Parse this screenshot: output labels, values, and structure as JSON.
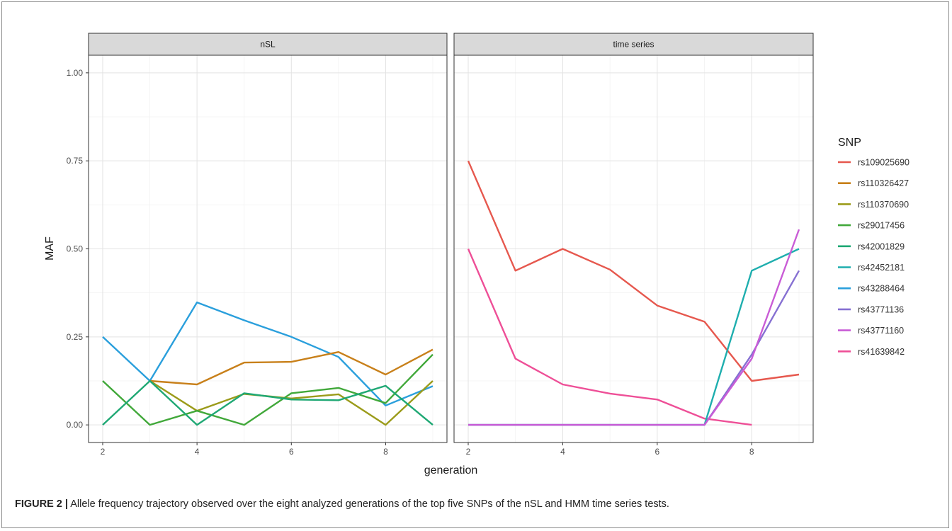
{
  "figure": {
    "label": "FIGURE 2 |",
    "caption": "Allele frequency trajectory observed over the eight analyzed generations of the top five SNPs of the nSL and HMM time series tests."
  },
  "chart_data": {
    "type": "line",
    "xlabel": "generation",
    "ylabel": "MAF",
    "xlim": [
      1.7,
      9.3
    ],
    "ylim": [
      -0.05,
      1.05
    ],
    "xticks": [
      2,
      4,
      6,
      8
    ],
    "yticks": [
      0.0,
      0.25,
      0.5,
      0.75,
      1.0
    ],
    "ytick_labels": [
      "0.00",
      "0.25",
      "0.50",
      "0.75",
      "1.00"
    ],
    "grid": true,
    "legend": {
      "title": "SNP",
      "position": "right",
      "entries": [
        {
          "name": "rs109025690",
          "color": "#E6584E"
        },
        {
          "name": "rs110326427",
          "color": "#C8801A"
        },
        {
          "name": "rs110370690",
          "color": "#9B9B1A"
        },
        {
          "name": "rs29017456",
          "color": "#41A83A"
        },
        {
          "name": "rs42001829",
          "color": "#1FA874"
        },
        {
          "name": "rs42452181",
          "color": "#1EAEAE"
        },
        {
          "name": "rs43288464",
          "color": "#2A9FDC"
        },
        {
          "name": "rs43771136",
          "color": "#8670D2"
        },
        {
          "name": "rs43771160",
          "color": "#C95CD6"
        },
        {
          "name": "rs41639842",
          "color": "#EE4F97"
        }
      ]
    },
    "panels": [
      {
        "title": "nSL",
        "series": [
          {
            "name": "rs43288464",
            "x": [
              2,
              3,
              4,
              5,
              6,
              7,
              8,
              9
            ],
            "y": [
              0.25,
              0.125,
              0.348,
              0.297,
              0.25,
              0.193,
              0.055,
              0.11
            ]
          },
          {
            "name": "rs110326427",
            "x": [
              3,
              4,
              5,
              6,
              7,
              8,
              9
            ],
            "y": [
              0.125,
              0.115,
              0.177,
              0.179,
              0.207,
              0.143,
              0.214
            ]
          },
          {
            "name": "rs110370690",
            "x": [
              3,
              4,
              5,
              6,
              7,
              8,
              9
            ],
            "y": [
              0.125,
              0.04,
              0.088,
              0.075,
              0.087,
              0.0,
              0.125
            ]
          },
          {
            "name": "rs29017456",
            "x": [
              2,
              3,
              4,
              5,
              6,
              7,
              8,
              9
            ],
            "y": [
              0.125,
              0.0,
              0.04,
              0.0,
              0.09,
              0.105,
              0.062,
              0.2
            ]
          },
          {
            "name": "rs42001829",
            "x": [
              2,
              3,
              4,
              5,
              6,
              7,
              8,
              9
            ],
            "y": [
              0.0,
              0.125,
              0.0,
              0.09,
              0.072,
              0.07,
              0.111,
              0.0
            ]
          }
        ]
      },
      {
        "title": "time series",
        "series": [
          {
            "name": "rs109025690",
            "x": [
              2,
              3,
              4,
              5,
              6,
              7,
              8,
              9
            ],
            "y": [
              0.75,
              0.438,
              0.5,
              0.441,
              0.339,
              0.293,
              0.125,
              0.143
            ]
          },
          {
            "name": "rs41639842",
            "x": [
              2,
              3,
              4,
              5,
              6,
              7,
              8
            ],
            "y": [
              0.5,
              0.188,
              0.115,
              0.089,
              0.072,
              0.018,
              0.0
            ]
          },
          {
            "name": "rs42452181",
            "x": [
              2,
              3,
              4,
              5,
              6,
              7,
              8,
              9
            ],
            "y": [
              0.0,
              0.0,
              0.0,
              0.0,
              0.0,
              0.0,
              0.438,
              0.5
            ]
          },
          {
            "name": "rs43771136",
            "x": [
              2,
              3,
              4,
              5,
              6,
              7,
              8,
              9
            ],
            "y": [
              0.0,
              0.0,
              0.0,
              0.0,
              0.0,
              0.0,
              0.2,
              0.438
            ]
          },
          {
            "name": "rs43771160",
            "x": [
              2,
              3,
              4,
              5,
              6,
              7,
              8,
              9
            ],
            "y": [
              0.0,
              0.0,
              0.0,
              0.0,
              0.0,
              0.0,
              0.188,
              0.555
            ]
          }
        ]
      }
    ]
  }
}
